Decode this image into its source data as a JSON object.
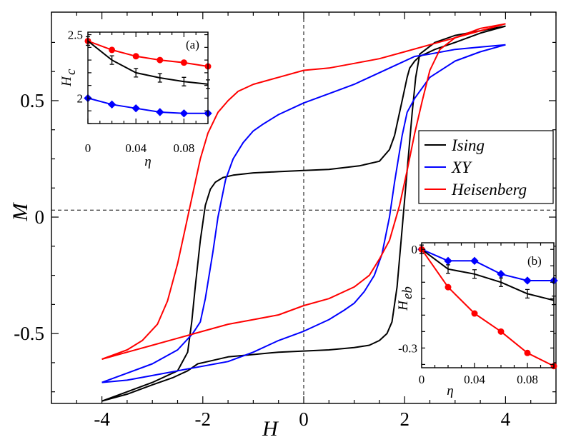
{
  "chart_data": [
    {
      "id": "main",
      "type": "line",
      "title": "",
      "xlabel": "H",
      "ylabel": "M",
      "xlim": [
        -5,
        5
      ],
      "ylim": [
        -0.8,
        0.88
      ],
      "x_ticks": [
        "-4",
        "-2",
        "0",
        "2",
        "4"
      ],
      "x_tick_values": [
        -4,
        -2,
        0,
        2,
        4
      ],
      "y_ticks": [
        "-0.5",
        "0",
        "0.5"
      ],
      "y_tick_values": [
        -0.5,
        0,
        0.5
      ],
      "reference_lines": {
        "vertical_x": 0,
        "horizontal_y": 0.03,
        "style": "dashed"
      },
      "legend": {
        "position": "right",
        "entries": [
          "Ising",
          "XY",
          "Heisenberg"
        ]
      },
      "series": [
        {
          "name": "Ising",
          "color": "#000000",
          "descending": [
            [
              4,
              0.82
            ],
            [
              3.5,
              0.79
            ],
            [
              3,
              0.75
            ],
            [
              2.6,
              0.72
            ],
            [
              2.3,
              0.69
            ],
            [
              2.2,
              0.67
            ],
            [
              2.1,
              0.64
            ],
            [
              2.05,
              0.6
            ],
            [
              1.95,
              0.5
            ],
            [
              1.85,
              0.4
            ],
            [
              1.8,
              0.35
            ],
            [
              1.7,
              0.29
            ],
            [
              1.5,
              0.24
            ],
            [
              1.1,
              0.22
            ],
            [
              0.5,
              0.205
            ],
            [
              0,
              0.2
            ],
            [
              -0.5,
              0.195
            ],
            [
              -1,
              0.19
            ],
            [
              -1.4,
              0.18
            ],
            [
              -1.6,
              0.17
            ],
            [
              -1.75,
              0.15
            ],
            [
              -1.85,
              0.12
            ],
            [
              -1.95,
              0.05
            ],
            [
              -2.05,
              -0.1
            ],
            [
              -2.15,
              -0.3
            ],
            [
              -2.22,
              -0.45
            ],
            [
              -2.3,
              -0.58
            ],
            [
              -2.5,
              -0.66
            ],
            [
              -3,
              -0.71
            ],
            [
              -3.5,
              -0.75
            ],
            [
              -4,
              -0.79
            ]
          ],
          "ascending": [
            [
              -4,
              -0.79
            ],
            [
              -3.5,
              -0.76
            ],
            [
              -3,
              -0.72
            ],
            [
              -2.6,
              -0.69
            ],
            [
              -2.3,
              -0.66
            ],
            [
              -2.1,
              -0.63
            ],
            [
              -1.9,
              -0.62
            ],
            [
              -1.5,
              -0.6
            ],
            [
              -1,
              -0.59
            ],
            [
              -0.5,
              -0.58
            ],
            [
              0,
              -0.575
            ],
            [
              0.5,
              -0.57
            ],
            [
              1,
              -0.56
            ],
            [
              1.3,
              -0.55
            ],
            [
              1.5,
              -0.53
            ],
            [
              1.65,
              -0.5
            ],
            [
              1.75,
              -0.45
            ],
            [
              1.85,
              -0.3
            ],
            [
              1.95,
              -0.05
            ],
            [
              2.05,
              0.2
            ],
            [
              2.15,
              0.45
            ],
            [
              2.22,
              0.6
            ],
            [
              2.3,
              0.7
            ],
            [
              2.6,
              0.75
            ],
            [
              3,
              0.78
            ],
            [
              3.5,
              0.8
            ],
            [
              4,
              0.82
            ]
          ]
        },
        {
          "name": "XY",
          "color": "#0000ff",
          "descending": [
            [
              4,
              0.74
            ],
            [
              3.5,
              0.73
            ],
            [
              3,
              0.72
            ],
            [
              2.5,
              0.7
            ],
            [
              2.2,
              0.69
            ],
            [
              1.9,
              0.66
            ],
            [
              1.5,
              0.62
            ],
            [
              1,
              0.57
            ],
            [
              0.5,
              0.53
            ],
            [
              0,
              0.49
            ],
            [
              -0.5,
              0.44
            ],
            [
              -0.8,
              0.4
            ],
            [
              -1,
              0.37
            ],
            [
              -1.2,
              0.32
            ],
            [
              -1.4,
              0.25
            ],
            [
              -1.55,
              0.16
            ],
            [
              -1.7,
              0
            ],
            [
              -1.8,
              -0.15
            ],
            [
              -1.95,
              -0.35
            ],
            [
              -2.05,
              -0.45
            ],
            [
              -2.2,
              -0.5
            ],
            [
              -2.5,
              -0.57
            ],
            [
              -3,
              -0.63
            ],
            [
              -3.5,
              -0.67
            ],
            [
              -4,
              -0.71
            ]
          ],
          "ascending": [
            [
              -4,
              -0.71
            ],
            [
              -3.5,
              -0.7
            ],
            [
              -3,
              -0.68
            ],
            [
              -2.5,
              -0.66
            ],
            [
              -2,
              -0.64
            ],
            [
              -1.5,
              -0.62
            ],
            [
              -1,
              -0.58
            ],
            [
              -0.5,
              -0.53
            ],
            [
              0,
              -0.49
            ],
            [
              0.5,
              -0.44
            ],
            [
              0.8,
              -0.4
            ],
            [
              1,
              -0.37
            ],
            [
              1.2,
              -0.32
            ],
            [
              1.4,
              -0.25
            ],
            [
              1.55,
              -0.16
            ],
            [
              1.7,
              0
            ],
            [
              1.8,
              0.15
            ],
            [
              1.95,
              0.35
            ],
            [
              2.05,
              0.45
            ],
            [
              2.2,
              0.51
            ],
            [
              2.5,
              0.6
            ],
            [
              3,
              0.67
            ],
            [
              3.5,
              0.71
            ],
            [
              4,
              0.74
            ]
          ]
        },
        {
          "name": "Heisenberg",
          "color": "#ff0000",
          "descending": [
            [
              4,
              0.83
            ],
            [
              3.5,
              0.8
            ],
            [
              3,
              0.77
            ],
            [
              2.5,
              0.74
            ],
            [
              2,
              0.71
            ],
            [
              1.5,
              0.68
            ],
            [
              1,
              0.66
            ],
            [
              0.5,
              0.64
            ],
            [
              0,
              0.63
            ],
            [
              -0.5,
              0.6
            ],
            [
              -1,
              0.57
            ],
            [
              -1.3,
              0.54
            ],
            [
              -1.5,
              0.5
            ],
            [
              -1.7,
              0.45
            ],
            [
              -1.9,
              0.36
            ],
            [
              -2.05,
              0.25
            ],
            [
              -2.2,
              0.1
            ],
            [
              -2.35,
              -0.05
            ],
            [
              -2.5,
              -0.2
            ],
            [
              -2.7,
              -0.36
            ],
            [
              -2.9,
              -0.46
            ],
            [
              -3.2,
              -0.53
            ],
            [
              -3.5,
              -0.57
            ],
            [
              -4,
              -0.61
            ]
          ],
          "ascending": [
            [
              -4,
              -0.61
            ],
            [
              -3.5,
              -0.58
            ],
            [
              -3,
              -0.55
            ],
            [
              -2.5,
              -0.52
            ],
            [
              -2,
              -0.49
            ],
            [
              -1.5,
              -0.46
            ],
            [
              -1,
              -0.44
            ],
            [
              -0.5,
              -0.42
            ],
            [
              0,
              -0.38
            ],
            [
              0.5,
              -0.35
            ],
            [
              1,
              -0.3
            ],
            [
              1.3,
              -0.25
            ],
            [
              1.5,
              -0.18
            ],
            [
              1.7,
              -0.1
            ],
            [
              1.9,
              0.05
            ],
            [
              2.05,
              0.2
            ],
            [
              2.2,
              0.36
            ],
            [
              2.35,
              0.5
            ],
            [
              2.5,
              0.63
            ],
            [
              2.7,
              0.72
            ],
            [
              3,
              0.77
            ],
            [
              3.5,
              0.81
            ],
            [
              4,
              0.83
            ]
          ]
        }
      ]
    },
    {
      "id": "inset-a",
      "type": "line",
      "panel_label": "(a)",
      "xlabel": "η",
      "ylabel": "H",
      "ylabel_sub": "c",
      "xlim": [
        0,
        0.1
      ],
      "ylim": [
        1.8,
        2.52
      ],
      "x_ticks": [
        "0",
        "0.04",
        "0.08"
      ],
      "x_tick_values": [
        0,
        0.04,
        0.08
      ],
      "y_ticks": [
        "2",
        "2.5"
      ],
      "y_tick_values": [
        2,
        2.5
      ],
      "series": [
        {
          "name": "Heisenberg",
          "color": "#ff0000",
          "marker": "circle",
          "x": [
            0,
            0.02,
            0.04,
            0.06,
            0.08,
            0.1
          ],
          "y": [
            2.45,
            2.38,
            2.33,
            2.3,
            2.28,
            2.25
          ]
        },
        {
          "name": "Ising",
          "color": "#000000",
          "marker": "errorbar",
          "x": [
            0,
            0.02,
            0.04,
            0.06,
            0.08,
            0.1
          ],
          "y": [
            2.45,
            2.3,
            2.2,
            2.16,
            2.13,
            2.11
          ]
        },
        {
          "name": "XY",
          "color": "#0000ff",
          "marker": "diamond",
          "x": [
            0,
            0.02,
            0.04,
            0.06,
            0.08,
            0.1
          ],
          "y": [
            2.0,
            1.95,
            1.92,
            1.89,
            1.88,
            1.88
          ]
        }
      ]
    },
    {
      "id": "inset-b",
      "type": "line",
      "panel_label": "(b)",
      "xlabel": "η",
      "ylabel": "H",
      "ylabel_sub": "eb",
      "xlim": [
        0,
        0.1
      ],
      "ylim": [
        -0.36,
        0.02
      ],
      "x_ticks": [
        "0",
        "0.04",
        "0.08"
      ],
      "x_tick_values": [
        0,
        0.04,
        0.08
      ],
      "y_ticks": [
        "0",
        "-0.3"
      ],
      "y_tick_values": [
        0,
        -0.3
      ],
      "series": [
        {
          "name": "XY",
          "color": "#0000ff",
          "marker": "diamond",
          "x": [
            0,
            0.02,
            0.04,
            0.06,
            0.08,
            0.1
          ],
          "y": [
            0,
            -0.035,
            -0.035,
            -0.075,
            -0.095,
            -0.095
          ]
        },
        {
          "name": "Ising",
          "color": "#000000",
          "marker": "errorbar",
          "x": [
            0,
            0.02,
            0.04,
            0.06,
            0.08,
            0.1
          ],
          "y": [
            0,
            -0.06,
            -0.075,
            -0.1,
            -0.135,
            -0.155
          ]
        },
        {
          "name": "Heisenberg",
          "color": "#ff0000",
          "marker": "circle",
          "x": [
            0,
            0.02,
            0.04,
            0.06,
            0.08,
            0.1
          ],
          "y": [
            0,
            -0.115,
            -0.195,
            -0.25,
            -0.315,
            -0.355
          ]
        }
      ]
    }
  ]
}
